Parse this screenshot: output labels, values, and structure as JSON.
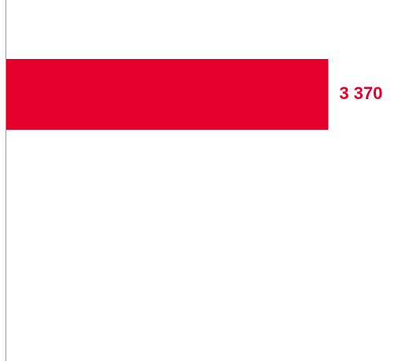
{
  "chart_data": {
    "type": "bar",
    "orientation": "horizontal",
    "categories": [
      ""
    ],
    "values": [
      3370
    ],
    "value_labels": [
      "3 370"
    ],
    "title": "",
    "xlabel": "",
    "ylabel": "",
    "xlim": [
      0,
      4100
    ],
    "grid": false,
    "legend": "none"
  },
  "colors": {
    "bar": "#E4002B",
    "label": "#E4002B",
    "axis": "#9a9a9a"
  }
}
